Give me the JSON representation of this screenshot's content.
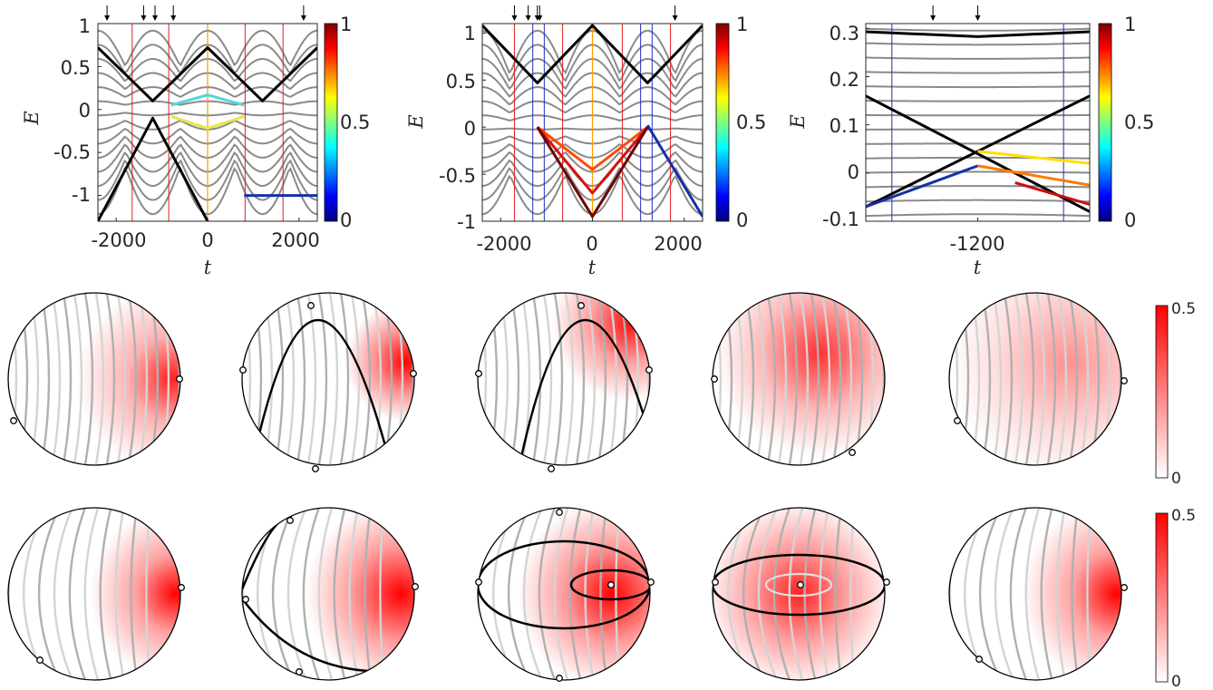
{
  "chart_data": [
    {
      "type": "line",
      "panel": "top-left",
      "xlabel": "t",
      "ylabel": "E",
      "xlim": [
        -2400,
        2400
      ],
      "ylim": [
        -1.3,
        1.0
      ],
      "xticks": [
        -2000,
        0,
        2000
      ],
      "xtick_labels": [
        "-2000",
        "0",
        "2000"
      ],
      "yticks": [
        1,
        0.5,
        0,
        -0.5,
        -1
      ],
      "ytick_labels": [
        "1",
        "0.5",
        "0",
        "-0.5",
        "-1"
      ],
      "red_vlines_t": [
        -1650,
        -850,
        0,
        820,
        1650
      ],
      "orange_vline_t": 0,
      "arrow_marks_t": [
        -2200,
        -1400,
        -1150,
        -750,
        2100
      ],
      "colorbar": {
        "min": 0,
        "max": 1,
        "tick_labels": [
          "1",
          "0.5",
          "0"
        ]
      },
      "series": [
        {
          "values_by_t": [
            [
              -2400,
              0.72
            ],
            [
              -1200,
              0.1
            ],
            [
              0,
              0.72
            ],
            [
              1200,
              0.1
            ],
            [
              2400,
              0.72
            ]
          ],
          "color": "#000000"
        },
        {
          "values_by_t": [
            [
              -2400,
              -1.3
            ],
            [
              -1200,
              -0.1
            ],
            [
              0,
              -1.3
            ]
          ],
          "color": "#000000"
        },
        {
          "values_by_t": [
            [
              -800,
              0.05
            ],
            [
              0,
              0.17
            ],
            [
              800,
              0.05
            ]
          ],
          "color": "#4fd8d8"
        },
        {
          "values_by_t": [
            [
              -800,
              -0.08
            ],
            [
              0,
              -0.22
            ],
            [
              800,
              -0.08
            ]
          ],
          "color": "#e6e64a"
        },
        {
          "values_by_t": [
            [
              800,
              -1.0
            ],
            [
              2400,
              -1.0
            ]
          ],
          "color": "#1530a8"
        }
      ]
    },
    {
      "type": "line",
      "panel": "top-middle",
      "xlabel": "t",
      "ylabel": "E",
      "xlim": [
        -2400,
        2400
      ],
      "ylim": [
        -1.0,
        1.1
      ],
      "xticks": [
        -2000,
        0,
        2000
      ],
      "xtick_labels": [
        "-2000",
        "0",
        "2000"
      ],
      "yticks": [
        1,
        0.5,
        0,
        -0.5,
        -1
      ],
      "ytick_labels": [
        "1",
        "0.5",
        "0",
        "-0.5",
        "-1"
      ],
      "red_vlines_t": [
        -1700,
        -650,
        650,
        1700
      ],
      "blue_vlines_t": [
        -1300,
        -1050,
        1050,
        1300
      ],
      "orange_vline_t": 0,
      "arrow_marks_t": [
        -1700,
        -1400,
        -1200,
        -1150,
        1800
      ],
      "colorbar": {
        "min": 0,
        "max": 1,
        "tick_labels": [
          "1",
          "0.5",
          "0"
        ]
      },
      "series": [
        {
          "values_by_t": [
            [
              -2400,
              1.08
            ],
            [
              -1200,
              0.47
            ],
            [
              0,
              1.08
            ],
            [
              1200,
              0.47
            ],
            [
              2400,
              1.08
            ]
          ],
          "color": "#000000"
        },
        {
          "values_by_t": [
            [
              -1200,
              0.0
            ],
            [
              0,
              -0.45
            ],
            [
              1200,
              0.0
            ]
          ],
          "color": "#ff4a00"
        },
        {
          "values_by_t": [
            [
              -1200,
              0.0
            ],
            [
              0,
              -0.7
            ],
            [
              1200,
              0.0
            ]
          ],
          "color": "#d91010"
        },
        {
          "values_by_t": [
            [
              -1200,
              0.0
            ],
            [
              0,
              -0.95
            ],
            [
              1200,
              0.0
            ]
          ],
          "color": "#6d0505"
        },
        {
          "values_by_t": [
            [
              1200,
              0.02
            ],
            [
              2400,
              -0.95
            ]
          ],
          "color": "#1530a8"
        }
      ]
    },
    {
      "type": "line",
      "panel": "top-right",
      "xlabel": "t",
      "ylabel": "E",
      "xlim": [
        -1500,
        -900
      ],
      "ylim": [
        -0.1,
        0.31
      ],
      "xticks": [
        -1200
      ],
      "xtick_labels": [
        "-1200"
      ],
      "yticks": [
        0.3,
        0.2,
        0.1,
        0,
        -0.1
      ],
      "ytick_labels": [
        "0.3",
        "0.2",
        "0.1",
        "0",
        "-0.1"
      ],
      "blue_vlines_t": [
        -1430,
        -970
      ],
      "arrow_marks_t": [
        -1320,
        -1200
      ],
      "colorbar": {
        "min": 0,
        "max": 1,
        "tick_labels": [
          "1",
          "0.5",
          "0"
        ]
      },
      "series": [
        {
          "values_by_t": [
            [
              -1500,
              0.293
            ],
            [
              -1200,
              0.283
            ],
            [
              -900,
              0.293
            ]
          ],
          "color": "#000000"
        },
        {
          "values_by_t": [
            [
              -1500,
              0.16
            ],
            [
              -900,
              -0.08
            ]
          ],
          "color": "#000000"
        },
        {
          "values_by_t": [
            [
              -1500,
              -0.07
            ],
            [
              -900,
              0.16
            ]
          ],
          "color": "#000000"
        },
        {
          "values_by_t": [
            [
              -1500,
              -0.07
            ],
            [
              -1200,
              0.015
            ]
          ],
          "color": "#1530a8"
        },
        {
          "values_by_t": [
            [
              -1200,
              0.045
            ],
            [
              -900,
              0.02
            ]
          ],
          "color": "#ffe000"
        },
        {
          "values_by_t": [
            [
              -1200,
              0.015
            ],
            [
              -900,
              -0.025
            ]
          ],
          "color": "#ff7a00"
        },
        {
          "values_by_t": [
            [
              -1100,
              -0.02
            ],
            [
              -900,
              -0.065
            ]
          ],
          "color": "#c81010"
        }
      ]
    },
    {
      "type": "heatmap",
      "panel": "disk-array",
      "rows": 2,
      "columns": 5,
      "colormap": "white-to-red",
      "colorbar_row1": {
        "min": 0,
        "max": 0.5,
        "tick_labels": [
          "0.5",
          "0"
        ]
      },
      "colorbar_row2": {
        "min": 0,
        "max": 0.5,
        "tick_labels": [
          "0.5",
          "0"
        ]
      }
    }
  ]
}
